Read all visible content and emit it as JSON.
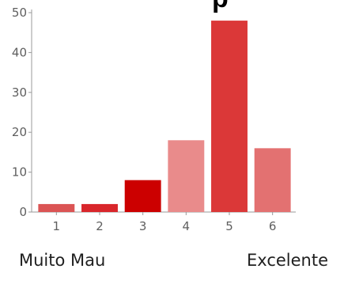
{
  "header": {
    "title_fragment": "p"
  },
  "chart_data": {
    "type": "bar",
    "categories": [
      "1",
      "2",
      "3",
      "4",
      "5",
      "6"
    ],
    "values": [
      2,
      2,
      8,
      18,
      48,
      16
    ],
    "bar_colors": [
      "#db5454",
      "#d9262b",
      "#cc0000",
      "#e98b8b",
      "#db3838",
      "#e37171"
    ],
    "ylim": [
      0,
      50
    ],
    "yticks": [
      0,
      10,
      20,
      30,
      40,
      50
    ],
    "grid": false,
    "legend": "none"
  },
  "scale_labels": {
    "low": "Muito Mau",
    "high": "Excelente"
  },
  "colors": {
    "axis": "#9a9a9a",
    "tick_text": "#5f5f5f"
  }
}
